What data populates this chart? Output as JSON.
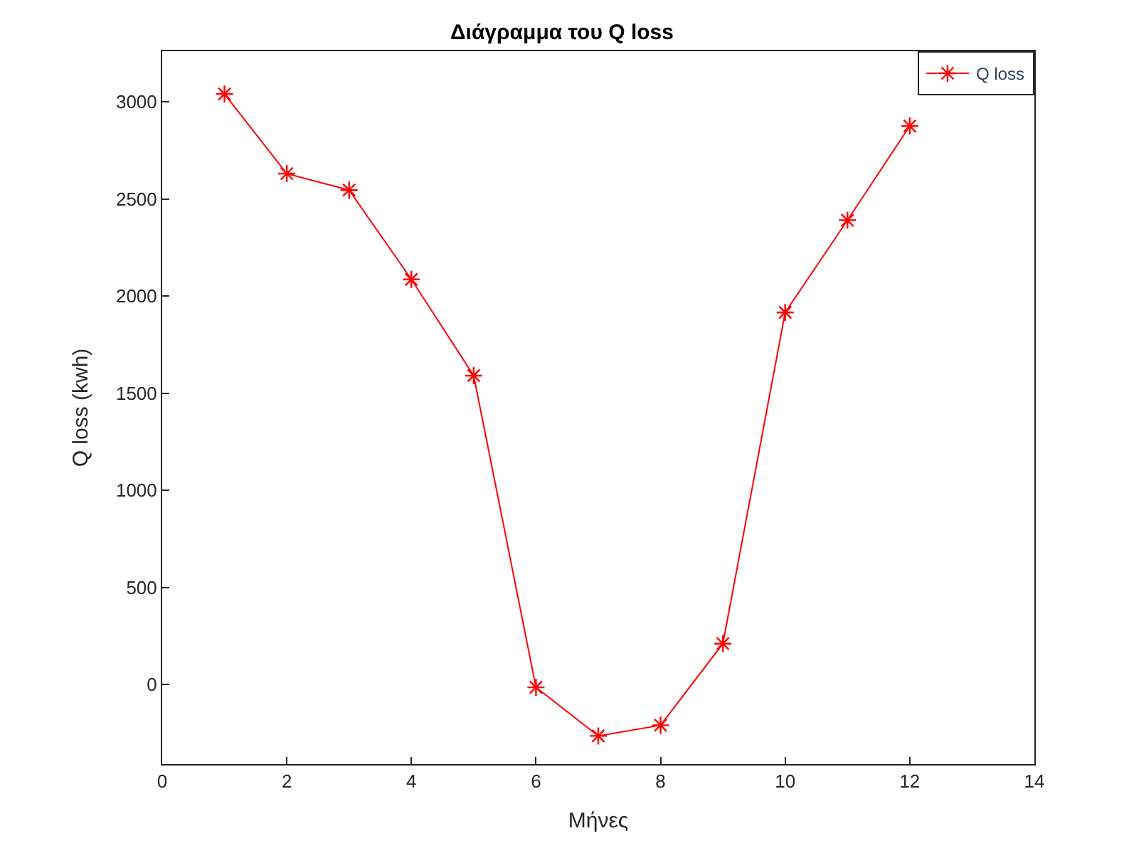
{
  "chart_data": {
    "type": "line",
    "title": "Διάγραμμα του Q loss",
    "xlabel": "Μήνες",
    "ylabel": "Q loss (kwh)",
    "x": [
      1,
      2,
      3,
      4,
      5,
      6,
      7,
      8,
      9,
      10,
      11,
      12
    ],
    "series": [
      {
        "name": "Q loss",
        "color": "#ff0000",
        "values": [
          3040,
          2630,
          2545,
          2085,
          1590,
          -15,
          -265,
          -210,
          210,
          1915,
          2390,
          2875
        ]
      }
    ],
    "xlim": [
      0,
      14
    ],
    "xticks": [
      0,
      2,
      4,
      6,
      8,
      10,
      12,
      14
    ],
    "ylim": [
      -410,
      3260
    ],
    "yticks": [
      0,
      500,
      1000,
      1500,
      2000,
      2500,
      3000
    ],
    "legend": "top right",
    "marker": "cross",
    "line_style": "solid"
  }
}
